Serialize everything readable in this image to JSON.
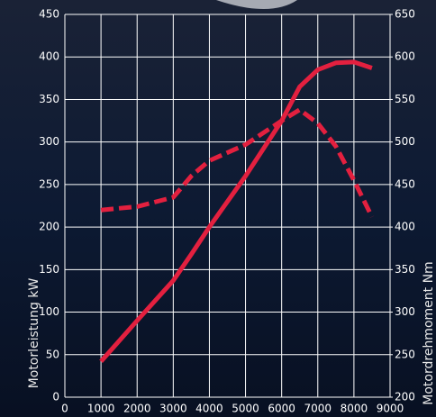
{
  "chart_data": {
    "type": "line",
    "x": [
      1000,
      2000,
      3000,
      3500,
      4000,
      5000,
      6000,
      6500,
      7000,
      7500,
      8000,
      8500
    ],
    "series": [
      {
        "name": "Motorleistung kW",
        "color": "#e3203f",
        "style": "solid",
        "values": [
          42,
          90,
          137,
          168,
          200,
          260,
          325,
          365,
          385,
          393,
          394,
          387
        ]
      },
      {
        "name": "Motordrehmoment Nm",
        "color": "#e3203f",
        "style": "dashed",
        "axis": "y2",
        "values": [
          420,
          424,
          435,
          460,
          478,
          497,
          525,
          538,
          522,
          495,
          455,
          412
        ]
      }
    ],
    "ylabel": "Motorleistung kW",
    "y2label": "Motordrehmoment Nm",
    "xlim": [
      0,
      9000
    ],
    "xticks": [
      0,
      1000,
      2000,
      3000,
      4000,
      5000,
      6000,
      7000,
      8000,
      9000
    ],
    "ylim": [
      0,
      450
    ],
    "yticks": [
      0,
      50,
      100,
      150,
      200,
      250,
      300,
      350,
      400,
      450
    ],
    "y2lim": [
      200,
      650
    ],
    "y2ticks": [
      200,
      250,
      300,
      350,
      400,
      450,
      500,
      550,
      600,
      650
    ],
    "grid": true
  }
}
